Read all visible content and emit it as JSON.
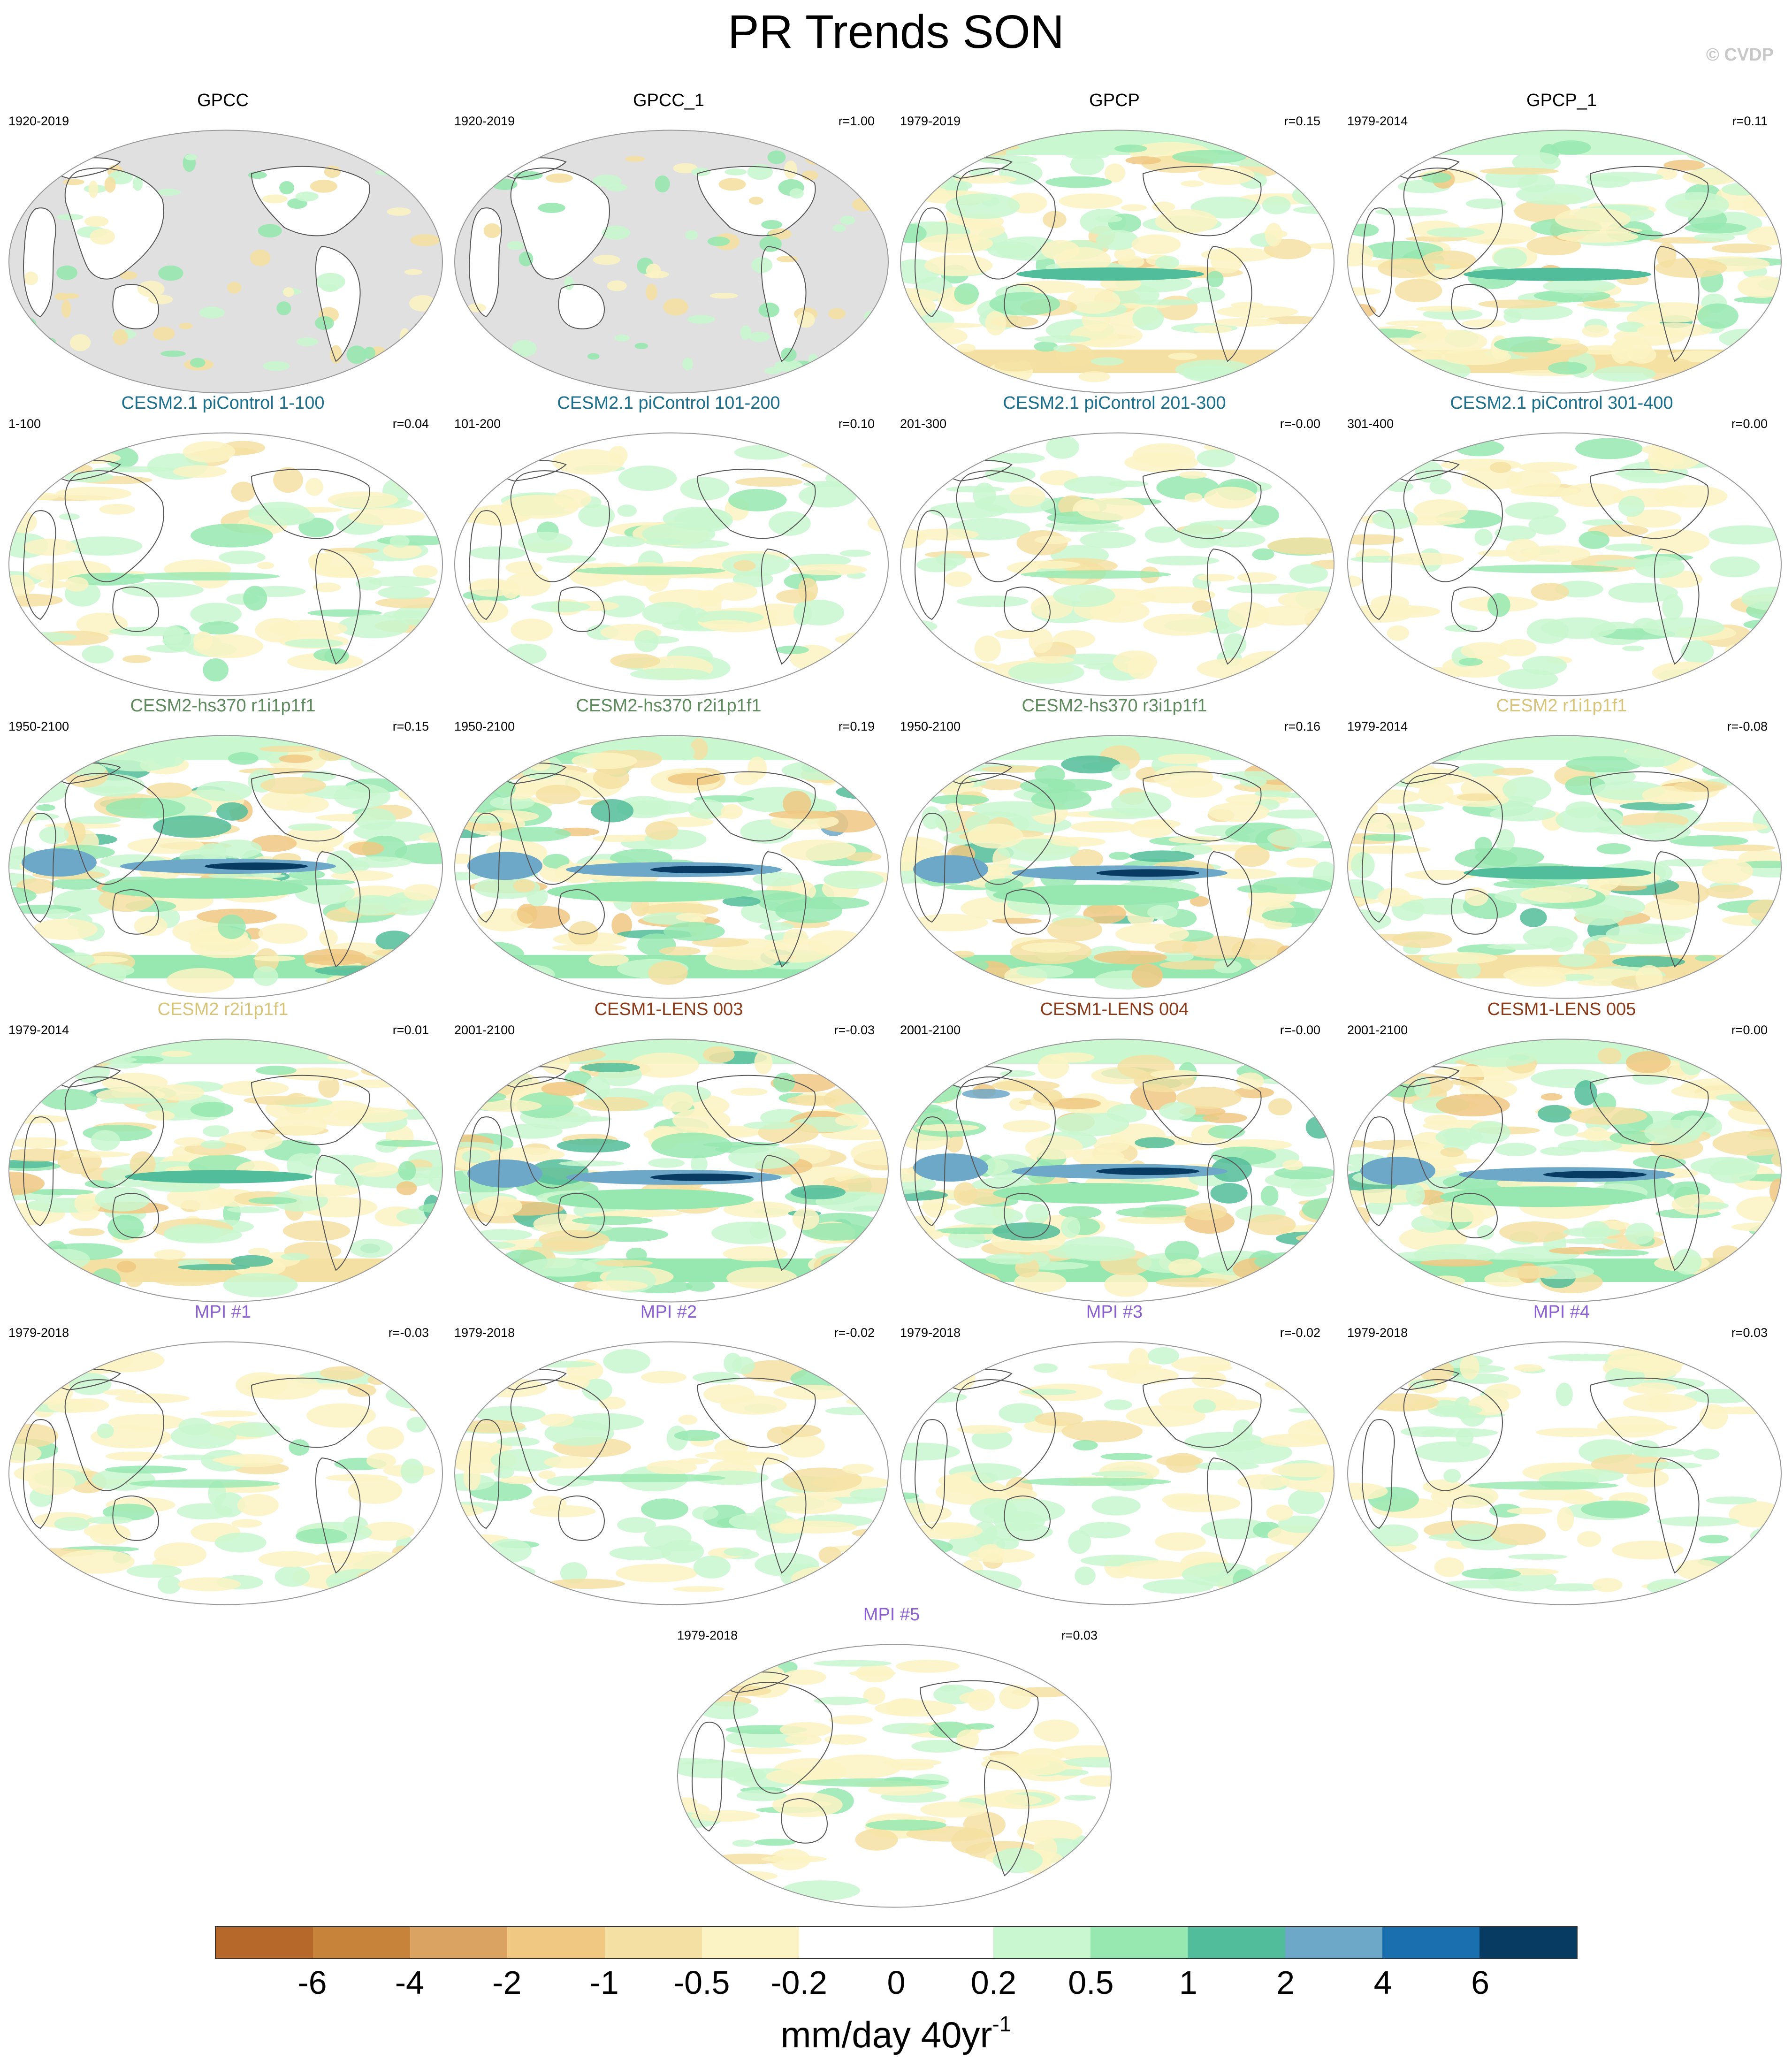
{
  "title": "PR Trends SON",
  "copyright": "© CVDP",
  "colors": {
    "land_mask": "#e0e0e0",
    "coast": "#555555",
    "scale": [
      "#b5682a",
      "#c8833b",
      "#dba362",
      "#f0c882",
      "#f4e0a2",
      "#fbf3c3",
      "#ffffff",
      "#ffffff",
      "#c9f7cf",
      "#97e8b0",
      "#52bd9a",
      "#6ea8c8",
      "#1a6fae",
      "#083b62"
    ]
  },
  "panels": [
    {
      "title": "GPCC",
      "title_color": "#000000",
      "period": "1920-2019",
      "r": "",
      "style": "obs_land"
    },
    {
      "title": "GPCC_1",
      "title_color": "#000000",
      "period": "1920-2019",
      "r": "r=1.00",
      "style": "obs_land"
    },
    {
      "title": "GPCP",
      "title_color": "#000000",
      "period": "1979-2019",
      "r": "r=0.15",
      "style": "strong"
    },
    {
      "title": "GPCP_1",
      "title_color": "#000000",
      "period": "1979-2014",
      "r": "r=0.11",
      "style": "strong"
    },
    {
      "title": "CESM2.1 piControl 1-100",
      "title_color": "#1b6f8c",
      "period": "1-100",
      "r": "r=0.04",
      "style": "weak"
    },
    {
      "title": "CESM2.1 piControl 101-200",
      "title_color": "#1b6f8c",
      "period": "101-200",
      "r": "r=0.10",
      "style": "weak"
    },
    {
      "title": "CESM2.1 piControl 201-300",
      "title_color": "#1b6f8c",
      "period": "201-300",
      "r": "r=-0.00",
      "style": "weak"
    },
    {
      "title": "CESM2.1 piControl 301-400",
      "title_color": "#1b6f8c",
      "period": "301-400",
      "r": "r=0.00",
      "style": "weak"
    },
    {
      "title": "CESM2-hs370 r1i1p1f1",
      "title_color": "#5e8a5e",
      "period": "1950-2100",
      "r": "r=0.15",
      "style": "forced"
    },
    {
      "title": "CESM2-hs370 r2i1p1f1",
      "title_color": "#5e8a5e",
      "period": "1950-2100",
      "r": "r=0.19",
      "style": "forced"
    },
    {
      "title": "CESM2-hs370 r3i1p1f1",
      "title_color": "#5e8a5e",
      "period": "1950-2100",
      "r": "r=0.16",
      "style": "forced"
    },
    {
      "title": "CESM2 r1i1p1f1",
      "title_color": "#d7c47a",
      "period": "1979-2014",
      "r": "r=-0.08",
      "style": "strong"
    },
    {
      "title": "CESM2 r2i1p1f1",
      "title_color": "#d7c47a",
      "period": "1979-2014",
      "r": "r=0.01",
      "style": "strong"
    },
    {
      "title": "CESM1-LENS 003",
      "title_color": "#8b3a1a",
      "period": "2001-2100",
      "r": "r=-0.03",
      "style": "forced"
    },
    {
      "title": "CESM1-LENS 004",
      "title_color": "#8b3a1a",
      "period": "2001-2100",
      "r": "r=-0.00",
      "style": "forced"
    },
    {
      "title": "CESM1-LENS 005",
      "title_color": "#8b3a1a",
      "period": "2001-2100",
      "r": "r=0.00",
      "style": "forced"
    },
    {
      "title": "MPI #1",
      "title_color": "#8a5fd1",
      "period": "1979-2018",
      "r": "r=-0.03",
      "style": "weak"
    },
    {
      "title": "MPI #2",
      "title_color": "#8a5fd1",
      "period": "1979-2018",
      "r": "r=-0.02",
      "style": "weak"
    },
    {
      "title": "MPI #3",
      "title_color": "#8a5fd1",
      "period": "1979-2018",
      "r": "r=-0.02",
      "style": "weak"
    },
    {
      "title": "MPI #4",
      "title_color": "#8a5fd1",
      "period": "1979-2018",
      "r": "r=0.03",
      "style": "weak"
    },
    {
      "title": "MPI #5",
      "title_color": "#8a5fd1",
      "period": "1979-2018",
      "r": "r=0.03",
      "style": "weak"
    }
  ],
  "colorbar": {
    "ticks": [
      "-6",
      "-4",
      "-2",
      "-1",
      "-0.5",
      "-0.2",
      "0",
      "0.2",
      "0.5",
      "1",
      "2",
      "4",
      "6"
    ],
    "units": "mm/day 40yr",
    "units_exp": "-1"
  }
}
